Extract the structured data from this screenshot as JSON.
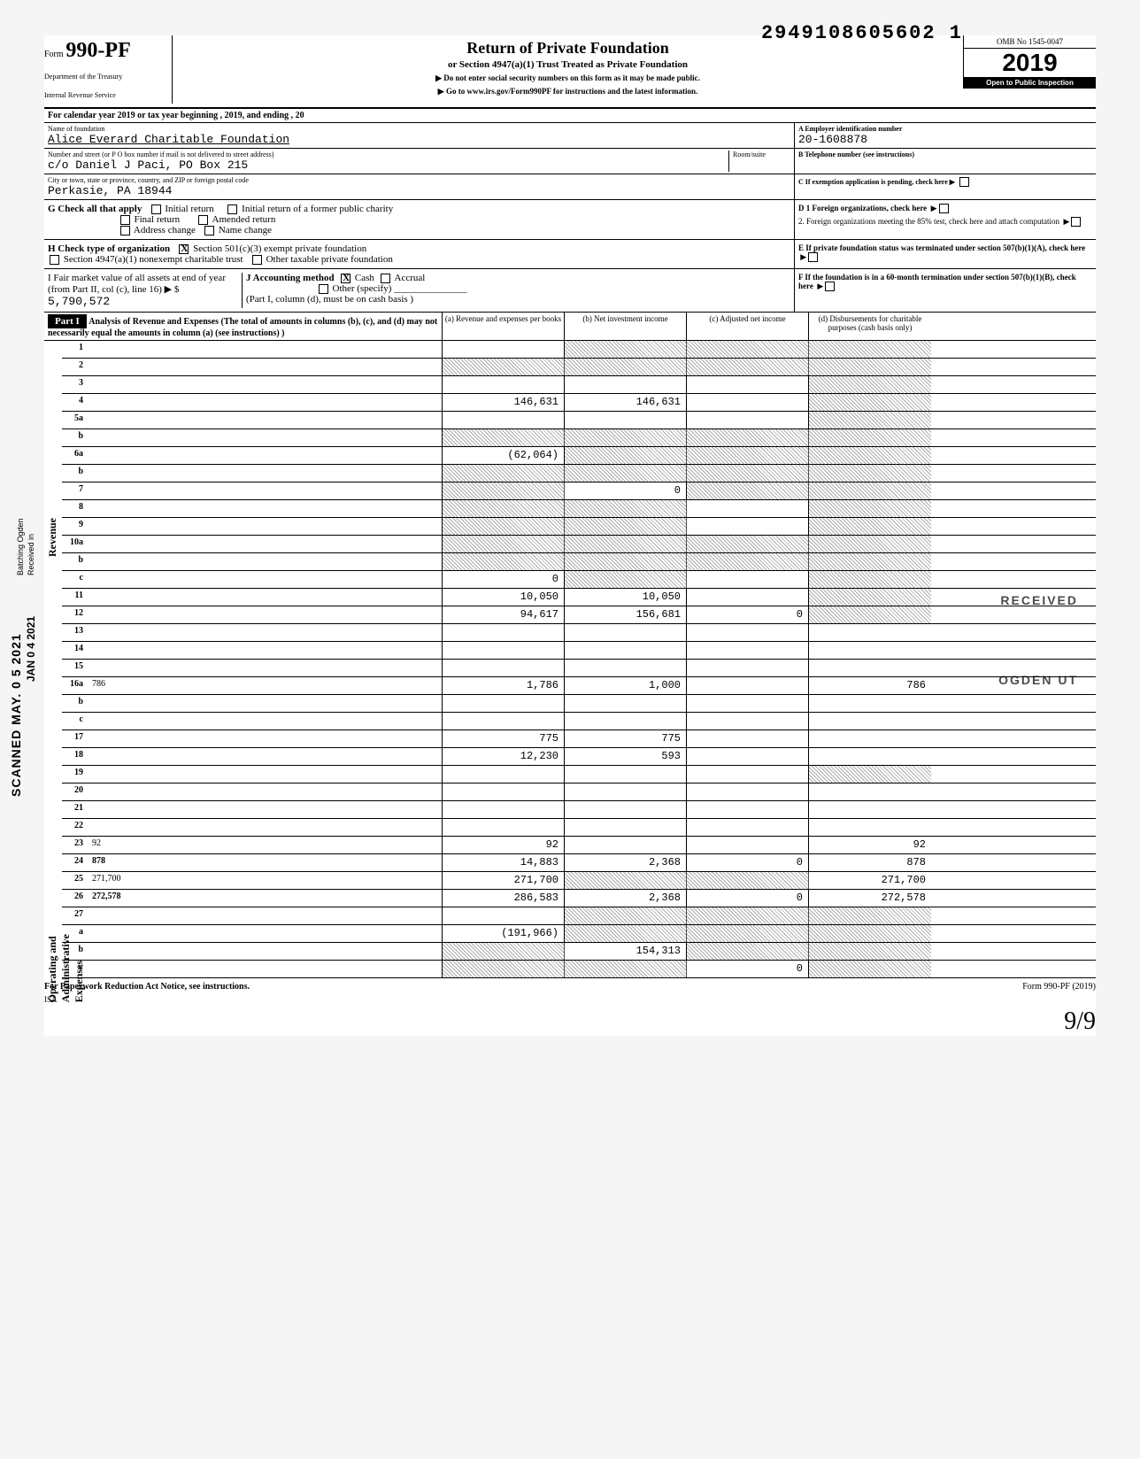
{
  "stamp_number": "2949108605602  1",
  "form": {
    "prefix": "Form",
    "number": "990-PF",
    "dept1": "Department of the Treasury",
    "dept2": "Internal Revenue Service"
  },
  "title": {
    "main": "Return of Private Foundation",
    "sub": "or Section 4947(a)(1) Trust Treated as Private Foundation",
    "inst1": "▶ Do not enter social security numbers on this form as it may be made public.",
    "inst2": "▶ Go to www.irs.gov/Form990PF for instructions and the latest information."
  },
  "yearbox": {
    "omb": "OMB No 1545-0047",
    "year_prefix": "20",
    "year_suffix": "19",
    "inspection": "Open to Public Inspection"
  },
  "tax_year_line": "For calendar year 2019 or tax year beginning                          , 2019, and ending                          , 20",
  "name_label": "Name of foundation",
  "name_value": "Alice Everard Charitable Foundation",
  "ein_label": "A  Employer identification number",
  "ein_value": "20-1608878",
  "address_label": "Number and street (or P O box number if mail is not delivered to street address)",
  "address_value": "c/o Daniel J Paci, PO Box 215",
  "room_label": "Room/suite",
  "phone_label": "B  Telephone number (see instructions)",
  "city_label": "City or town, state or province, country, and ZIP or foreign postal code",
  "city_value": "Perkasie, PA 18944",
  "exemption_label": "C  If exemption application is pending, check here ▶",
  "section_G": {
    "label": "G   Check all that apply",
    "opts": [
      "Initial return",
      "Initial return of a former public charity",
      "Final return",
      "Amended return",
      "Address change",
      "Name change"
    ]
  },
  "section_D": {
    "d1": "D  1  Foreign organizations, check here",
    "d2": "2. Foreign organizations meeting the 85% test, check here and attach computation"
  },
  "section_H": {
    "label": "H   Check type of organization",
    "opt1": "Section 501(c)(3) exempt private foundation",
    "opt2": "Section 4947(a)(1) nonexempt charitable trust",
    "opt3": "Other taxable private foundation"
  },
  "section_E": "E   If private foundation status was terminated under section 507(b)(1)(A), check here",
  "section_I": {
    "label": "I     Fair market value of all assets at end of year (from Part II, col (c), line 16) ▶ $",
    "value": "5,790,572",
    "J": "J   Accounting method",
    "cash": "Cash",
    "accrual": "Accrual",
    "other": "Other (specify)",
    "note": "(Part I, column (d), must be on cash basis )"
  },
  "section_F": "F   If the foundation is in a 60-month termination under section 507(b)(1)(B), check here",
  "part1_label": "Part I",
  "part1_title": "Analysis of Revenue and Expenses (The total of amounts in columns (b), (c), and (d) may not necessarily equal the amounts in column (a) (see instructions) )",
  "col_headers": {
    "a": "(a) Revenue and expenses per books",
    "b": "(b) Net investment income",
    "c": "(c) Adjusted net income",
    "d": "(d) Disbursements for charitable purposes (cash basis only)"
  },
  "revenue_side": "Revenue",
  "expense_side": "Operating and Administrative Expenses",
  "rows": [
    {
      "n": "1",
      "d": "",
      "a": "",
      "b": "",
      "c": "",
      "sb": true,
      "sc": true,
      "sd": true
    },
    {
      "n": "2",
      "d": "",
      "a": "",
      "b": "",
      "c": "",
      "sa": true,
      "sb": true,
      "sc": true,
      "sd": true
    },
    {
      "n": "3",
      "d": "",
      "a": "",
      "b": "",
      "c": "",
      "sd": true
    },
    {
      "n": "4",
      "d": "",
      "a": "146,631",
      "b": "146,631",
      "c": "",
      "sd": true
    },
    {
      "n": "5a",
      "d": "",
      "a": "",
      "b": "",
      "c": "",
      "sd": true
    },
    {
      "n": "b",
      "d": "",
      "a": "",
      "b": "",
      "c": "",
      "sa": true,
      "sb": true,
      "sc": true,
      "sd": true
    },
    {
      "n": "6a",
      "d": "",
      "a": "(62,064)",
      "b": "",
      "c": "",
      "sb": true,
      "sc": true,
      "sd": true
    },
    {
      "n": "b",
      "d": "",
      "a": "",
      "b": "",
      "c": "",
      "sa": true,
      "sb": true,
      "sc": true,
      "sd": true
    },
    {
      "n": "7",
      "d": "",
      "a": "",
      "b": "0",
      "c": "",
      "sa": true,
      "sc": true,
      "sd": true
    },
    {
      "n": "8",
      "d": "",
      "a": "",
      "b": "",
      "c": "",
      "sa": true,
      "sb": true,
      "sd": true
    },
    {
      "n": "9",
      "d": "",
      "a": "",
      "b": "",
      "c": "",
      "sa": true,
      "sb": true,
      "sd": true
    },
    {
      "n": "10a",
      "d": "",
      "a": "",
      "b": "",
      "c": "",
      "sa": true,
      "sb": true,
      "sc": true,
      "sd": true
    },
    {
      "n": "b",
      "d": "",
      "a": "",
      "b": "",
      "c": "",
      "sa": true,
      "sb": true,
      "sc": true,
      "sd": true
    },
    {
      "n": "c",
      "d": "",
      "a": "0",
      "b": "",
      "c": "",
      "sb": true,
      "sd": true
    },
    {
      "n": "11",
      "d": "",
      "a": "10,050",
      "b": "10,050",
      "c": "",
      "sd": true
    },
    {
      "n": "12",
      "d": "",
      "a": "94,617",
      "b": "156,681",
      "c": "0",
      "bold": true,
      "sd": true
    },
    {
      "n": "13",
      "d": "",
      "a": "",
      "b": "",
      "c": ""
    },
    {
      "n": "14",
      "d": "",
      "a": "",
      "b": "",
      "c": ""
    },
    {
      "n": "15",
      "d": "",
      "a": "",
      "b": "",
      "c": ""
    },
    {
      "n": "16a",
      "d": "786",
      "a": "1,786",
      "b": "1,000",
      "c": ""
    },
    {
      "n": "b",
      "d": "",
      "a": "",
      "b": "",
      "c": ""
    },
    {
      "n": "c",
      "d": "",
      "a": "",
      "b": "",
      "c": ""
    },
    {
      "n": "17",
      "d": "",
      "a": "775",
      "b": "775",
      "c": ""
    },
    {
      "n": "18",
      "d": "",
      "a": "12,230",
      "b": "593",
      "c": ""
    },
    {
      "n": "19",
      "d": "",
      "a": "",
      "b": "",
      "c": "",
      "sd": true
    },
    {
      "n": "20",
      "d": "",
      "a": "",
      "b": "",
      "c": ""
    },
    {
      "n": "21",
      "d": "",
      "a": "",
      "b": "",
      "c": ""
    },
    {
      "n": "22",
      "d": "",
      "a": "",
      "b": "",
      "c": ""
    },
    {
      "n": "23",
      "d": "92",
      "a": "92",
      "b": "",
      "c": ""
    },
    {
      "n": "24",
      "d": "878",
      "a": "14,883",
      "b": "2,368",
      "c": "0",
      "bold": true
    },
    {
      "n": "25",
      "d": "271,700",
      "a": "271,700",
      "b": "",
      "c": "",
      "sb": true,
      "sc": true
    },
    {
      "n": "26",
      "d": "272,578",
      "a": "286,583",
      "b": "2,368",
      "c": "0",
      "bold": true
    },
    {
      "n": "27",
      "d": "",
      "a": "",
      "b": "",
      "c": "",
      "sb": true,
      "sc": true,
      "sd": true
    },
    {
      "n": "a",
      "d": "",
      "a": "(191,966)",
      "b": "",
      "c": "",
      "bold": true,
      "sb": true,
      "sc": true,
      "sd": true
    },
    {
      "n": "b",
      "d": "",
      "a": "",
      "b": "154,313",
      "c": "",
      "bold": true,
      "sa": true,
      "sc": true,
      "sd": true
    },
    {
      "n": "c",
      "d": "",
      "a": "",
      "b": "",
      "c": "0",
      "bold": true,
      "sa": true,
      "sb": true,
      "sd": true
    }
  ],
  "footer": {
    "left": "For Paperwork Reduction Act Notice, see instructions.",
    "right": "Form 990-PF (2019)",
    "isa": "ISA"
  },
  "stamps": {
    "scanned": "SCANNED MAY. 0 5 2021",
    "received": "RECEIVED",
    "ogden": "OGDEN UT",
    "jan": "JAN 0 4 2021",
    "batching": "Batching Ogden",
    "received_in": "Received in"
  },
  "page_sig": "9/9"
}
